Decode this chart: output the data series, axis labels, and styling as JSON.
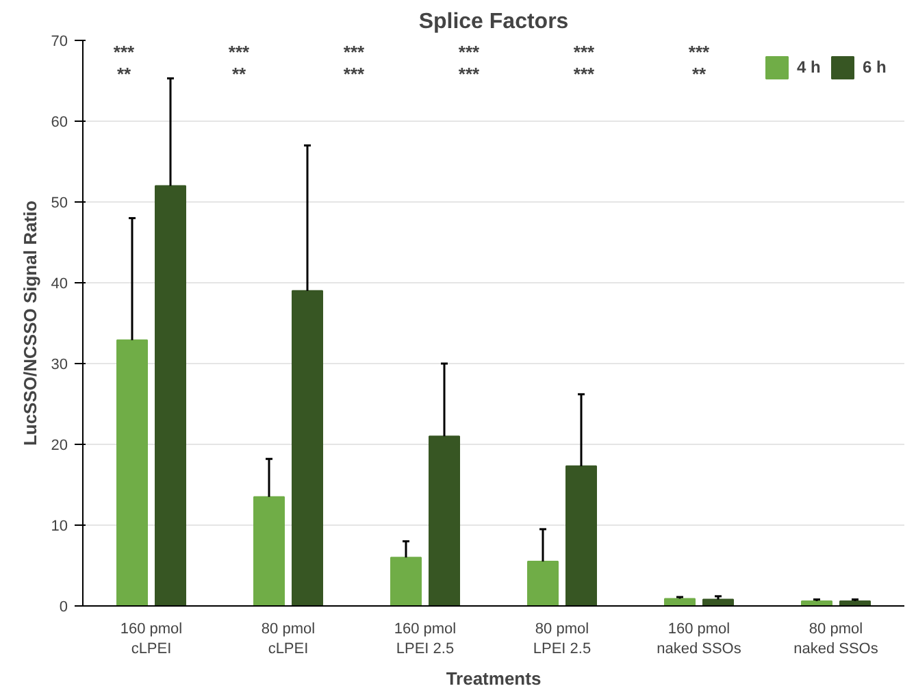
{
  "chart_data": {
    "type": "bar",
    "title": "Splice Factors",
    "xlabel": "Treatments",
    "ylabel": "LucSSO/NCSSO Signal Ratio",
    "categories": [
      "160 pmol\ncLPEI",
      "80 pmol\ncLPEI",
      "160 pmol\nLPEI 2.5",
      "80 pmol\nLPEI 2.5",
      "160 pmol\nnaked SSOs",
      "80 pmol\nnaked SSOs"
    ],
    "series": [
      {
        "name": "4 h",
        "color": "#70ad47",
        "values": [
          32.9,
          13.5,
          6,
          5.5,
          0.9,
          0.6
        ],
        "errors": [
          [
            32.9,
            48
          ],
          [
            13.5,
            18.2
          ],
          [
            6,
            8
          ],
          [
            5.5,
            9.5
          ],
          [
            0.9,
            1.1
          ],
          [
            0.6,
            0.8
          ]
        ]
      },
      {
        "name": "6 h",
        "color": "#375623",
        "values": [
          52,
          39,
          21,
          17.3,
          0.8,
          0.6
        ],
        "errors": [
          [
            52,
            65.3
          ],
          [
            39,
            57
          ],
          [
            21,
            30
          ],
          [
            17.3,
            26.2
          ],
          [
            0.8,
            1.2
          ],
          [
            0.6,
            0.8
          ]
        ]
      }
    ],
    "ylim": [
      0,
      70
    ],
    "yticks": [
      0,
      10,
      20,
      30,
      40,
      50,
      60,
      70
    ],
    "grid": "y",
    "legend": "top right",
    "annotations": [
      "***",
      "***",
      "***",
      "***",
      "***",
      "***",
      "**",
      "**",
      "***",
      "***",
      "***",
      "**"
    ]
  }
}
